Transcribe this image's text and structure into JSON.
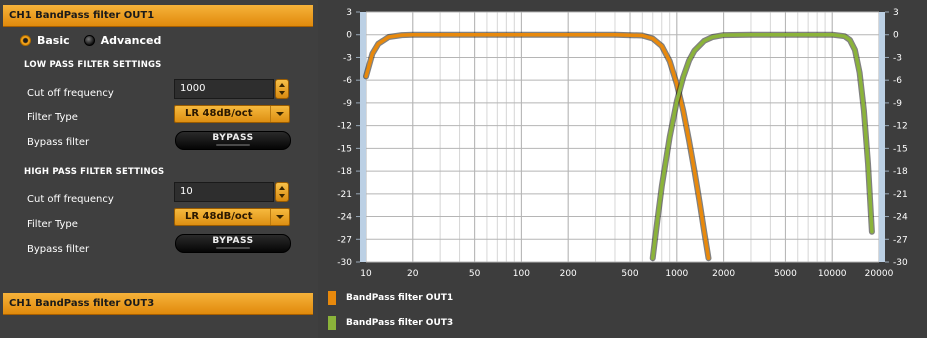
{
  "panel": {
    "out1_header": "CH1 BandPass filter OUT1",
    "out3_header": "CH1 BandPass filter OUT3",
    "mode": {
      "basic_label": "Basic",
      "advanced_label": "Advanced",
      "selected": "Basic"
    },
    "low_pass": {
      "section_title": "LOW PASS FILTER SETTINGS",
      "cutoff_label": "Cut off frequency",
      "cutoff_value": "1000",
      "filter_type_label": "Filter Type",
      "filter_type_value": "LR 48dB/oct",
      "bypass_label": "Bypass filter",
      "bypass_button": "BYPASS"
    },
    "high_pass": {
      "section_title": "HIGH PASS FILTER SETTINGS",
      "cutoff_label": "Cut off frequency",
      "cutoff_value": "10",
      "filter_type_label": "Filter Type",
      "filter_type_value": "LR 48dB/oct",
      "bypass_label": "Bypass filter",
      "bypass_button": "BYPASS"
    }
  },
  "chart_data": {
    "type": "line",
    "x_scale": "log",
    "xlim": [
      10,
      20000
    ],
    "ylim": [
      -30,
      3
    ],
    "x_ticks": [
      10,
      20,
      50,
      100,
      200,
      500,
      1000,
      2000,
      5000,
      10000,
      20000
    ],
    "x_tick_labels": [
      "10",
      "20",
      "50",
      "100",
      "200",
      "500",
      "1000",
      "2000",
      "5000",
      "10000",
      "20000"
    ],
    "y_ticks": [
      3,
      0,
      -3,
      -6,
      -9,
      -12,
      -15,
      -18,
      -21,
      -24,
      -27,
      -30
    ],
    "y_tick_labels": [
      "3",
      "0",
      "-3",
      "-6",
      "-9",
      "-12",
      "-15",
      "-18",
      "-21",
      "-24",
      "-27",
      "-30"
    ],
    "grid": true,
    "legend_position": "bottom",
    "series": [
      {
        "name": "BandPass filter OUT1",
        "color": "#e8890c",
        "x": [
          10,
          11,
          12,
          14,
          17,
          20,
          30,
          50,
          100,
          200,
          400,
          600,
          700,
          800,
          900,
          1000,
          1100,
          1200,
          1300,
          1400,
          1500,
          1600
        ],
        "y": [
          -5.5,
          -2.5,
          -1.2,
          -0.3,
          -0.05,
          0,
          0,
          0,
          0,
          0,
          0,
          -0.1,
          -0.5,
          -1.5,
          -3.5,
          -6.5,
          -10,
          -14,
          -18,
          -22,
          -26,
          -29.5
        ]
      },
      {
        "name": "BandPass filter OUT3",
        "color": "#8bb33a",
        "x": [
          700,
          750,
          800,
          900,
          1000,
          1100,
          1200,
          1300,
          1500,
          1700,
          2000,
          3000,
          5000,
          8000,
          10000,
          12000,
          13000,
          14000,
          15000,
          16000,
          17000,
          18000
        ],
        "y": [
          -29.5,
          -24.5,
          -20,
          -13.5,
          -8.8,
          -5.6,
          -3.4,
          -2.1,
          -0.8,
          -0.3,
          -0.05,
          0,
          0,
          0,
          0,
          -0.2,
          -0.7,
          -2,
          -5,
          -10,
          -17,
          -26
        ]
      }
    ]
  }
}
